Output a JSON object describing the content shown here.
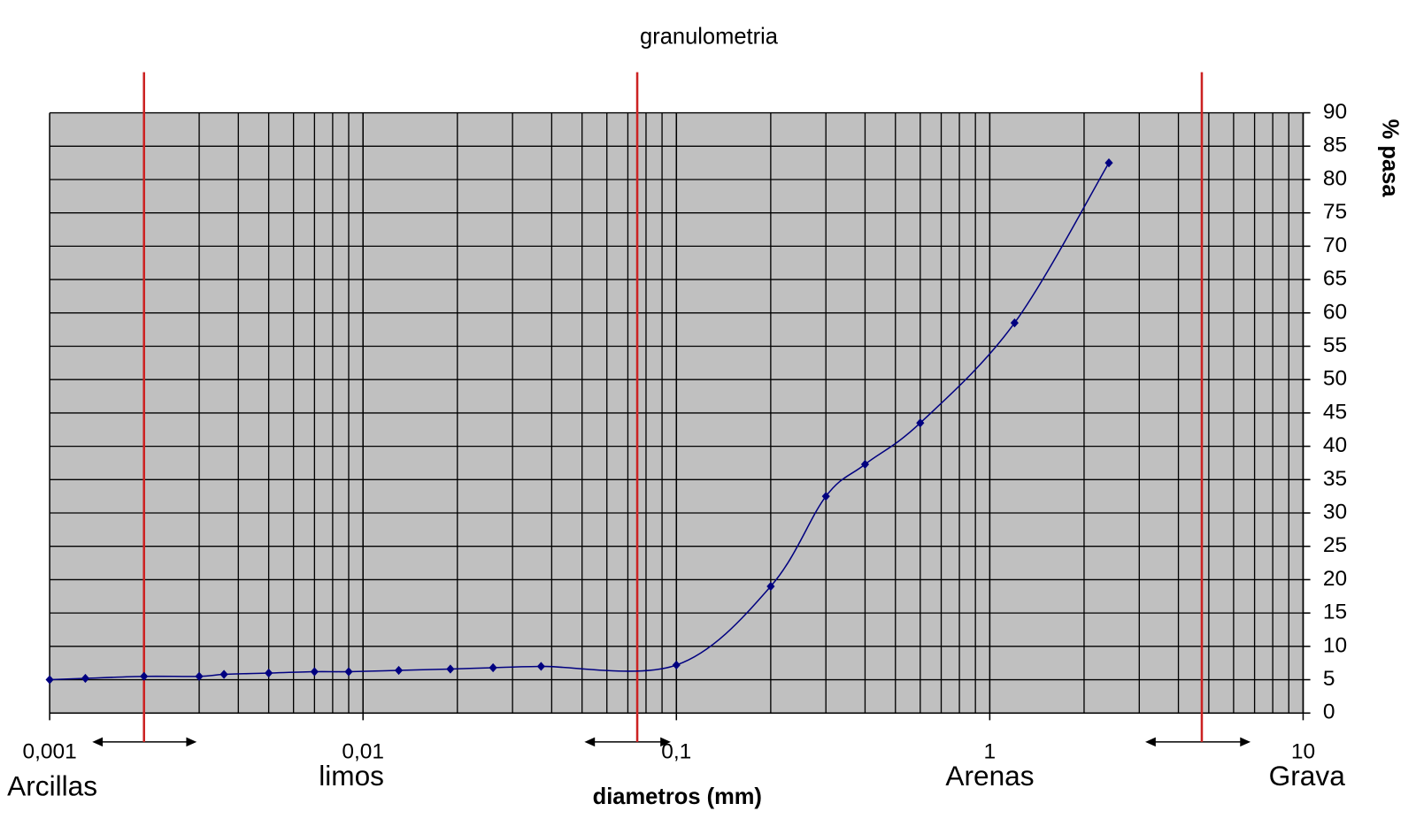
{
  "chart_data": {
    "type": "line",
    "title": "granulometria",
    "x_label": "diametros (mm)",
    "y_label": "% pasa",
    "xscale": "log",
    "yaxis_side": "right",
    "grid": true,
    "background": "#c0c0c0",
    "xlim": [
      0.001,
      10
    ],
    "ylim": [
      0,
      90
    ],
    "xticks": [
      {
        "value": 0.001,
        "label": "0,001"
      },
      {
        "value": 0.01,
        "label": "0,01"
      },
      {
        "value": 0.1,
        "label": "0,1"
      },
      1,
      10
    ],
    "xminor": [
      0.002,
      0.003,
      0.004,
      0.005,
      0.006,
      0.007,
      0.008,
      0.009,
      0.02,
      0.03,
      0.04,
      0.05,
      0.06,
      0.07,
      0.08,
      0.09,
      0.2,
      0.3,
      0.4,
      0.5,
      0.6,
      0.7,
      0.8,
      0.9,
      2,
      3,
      4,
      5,
      6,
      7,
      8,
      9
    ],
    "yticks": [
      0,
      5,
      10,
      15,
      20,
      25,
      30,
      35,
      40,
      45,
      50,
      55,
      60,
      65,
      70,
      75,
      80,
      85,
      90
    ],
    "boundaries": [
      0.002,
      0.075,
      4.75
    ],
    "boundary_color": "#cc2222",
    "soil_classes": [
      "Arcillas",
      "limos",
      "Arenas",
      "Grava"
    ],
    "series": [
      {
        "name": "granulometria",
        "color": "#000080",
        "x": [
          0.001,
          0.0013,
          0.002,
          0.003,
          0.0036,
          0.005,
          0.007,
          0.009,
          0.013,
          0.019,
          0.026,
          0.037,
          0.1,
          0.2,
          0.3,
          0.4,
          0.6,
          1.2,
          2.4
        ],
        "values": [
          5,
          5.2,
          5.5,
          5.5,
          5.8,
          6,
          6.2,
          6.2,
          6.4,
          6.6,
          6.8,
          7,
          7.2,
          19,
          32.5,
          37.3,
          43.5,
          58.5,
          82.5
        ]
      }
    ]
  }
}
